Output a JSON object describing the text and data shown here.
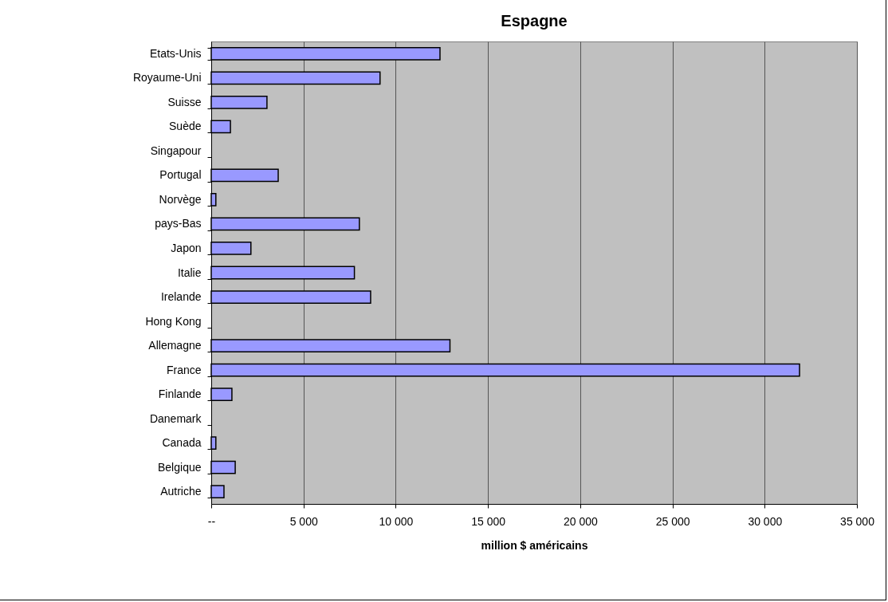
{
  "chart_data": {
    "type": "bar",
    "orientation": "horizontal",
    "title": "Espagne",
    "xlabel": "million $ américains",
    "categories": [
      "Etats-Unis",
      "Royaume-Uni",
      "Suisse",
      "Suède",
      "Singapour",
      "Portugal",
      "Norvège",
      "pays-Bas",
      "Japon",
      "Italie",
      "Irelande",
      "Hong Kong",
      "Allemagne",
      "France",
      "Finlande",
      "Danemark",
      "Canada",
      "Belgique",
      "Autriche"
    ],
    "values": [
      12400,
      9150,
      3020,
      1040,
      null,
      3630,
      250,
      8030,
      2150,
      7760,
      8640,
      null,
      12940,
      31890,
      1120,
      null,
      250,
      1300,
      690
    ],
    "color": "#9999ff",
    "xlim": [
      0,
      35000
    ],
    "xticks": [
      {
        "value": 0,
        "label": "--"
      },
      {
        "value": 5000,
        "label": "5 000"
      },
      {
        "value": 10000,
        "label": "10 000"
      },
      {
        "value": 15000,
        "label": "15 000"
      },
      {
        "value": 20000,
        "label": "20 000"
      },
      {
        "value": 25000,
        "label": "25 000"
      },
      {
        "value": 30000,
        "label": "30 000"
      },
      {
        "value": 35000,
        "label": "35 000"
      }
    ],
    "grid": "x"
  }
}
